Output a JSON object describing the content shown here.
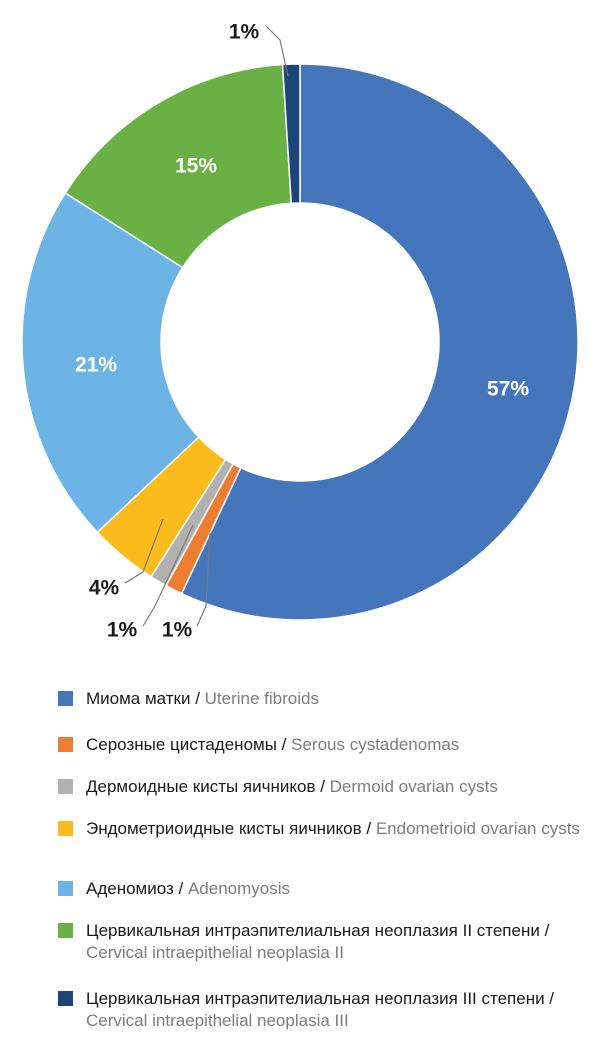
{
  "chart_data": {
    "type": "pie",
    "donut": true,
    "title": "",
    "unit": "%",
    "slices": [
      {
        "value": 57,
        "label": "57%",
        "color": "#4575bb",
        "name_ru": "Миома матки",
        "name_en": "Uterine fibroids"
      },
      {
        "value": 1,
        "label": "1%",
        "color": "#ed7d31",
        "name_ru": "Серозные цистаденомы",
        "name_en": "Serous cystadenomas"
      },
      {
        "value": 1,
        "label": "1%",
        "color": "#b1b1b1",
        "name_ru": "Дермоидные кисты яичников",
        "name_en": "Dermoid ovarian cysts"
      },
      {
        "value": 4,
        "label": "4%",
        "color": "#fbbb1d",
        "name_ru": "Эндометриоидные кисты яичников",
        "name_en": "Endometrioid ovarian cysts"
      },
      {
        "value": 21,
        "label": "21%",
        "color": "#6cb3e6",
        "name_ru": "Аденомиоз",
        "name_en": "Adenomyosis"
      },
      {
        "value": 15,
        "label": "15%",
        "color": "#6ab145",
        "name_ru": "Цервикальная интраэпителиальная неоплазия II степени",
        "name_en": "Cervical intraepithelial neoplasia II"
      },
      {
        "value": 1,
        "label": "1%",
        "color": "#1c4677",
        "name_ru": "Цервикальная интраэпителиальная неоплазия III степени",
        "name_en": "Cervical intraepithelial neoplasia III"
      }
    ],
    "legend_position": "bottom",
    "label_separator": " / "
  }
}
